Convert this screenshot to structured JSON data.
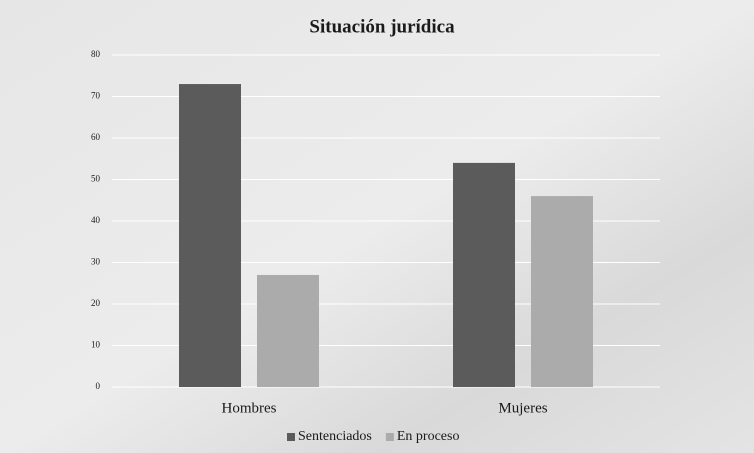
{
  "chart_data": {
    "type": "bar",
    "title": "Situación jurídica",
    "categories": [
      "Hombres",
      "Mujeres"
    ],
    "series": [
      {
        "name": "Sentenciados",
        "color": "#5b5b5b",
        "values": [
          73,
          54
        ]
      },
      {
        "name": "En proceso",
        "color": "#ababab",
        "values": [
          27,
          46
        ]
      }
    ],
    "ylim": [
      0,
      80
    ],
    "yticks": [
      0,
      10,
      20,
      30,
      40,
      50,
      60,
      70,
      80
    ],
    "grid": true,
    "legend": "bottom"
  }
}
